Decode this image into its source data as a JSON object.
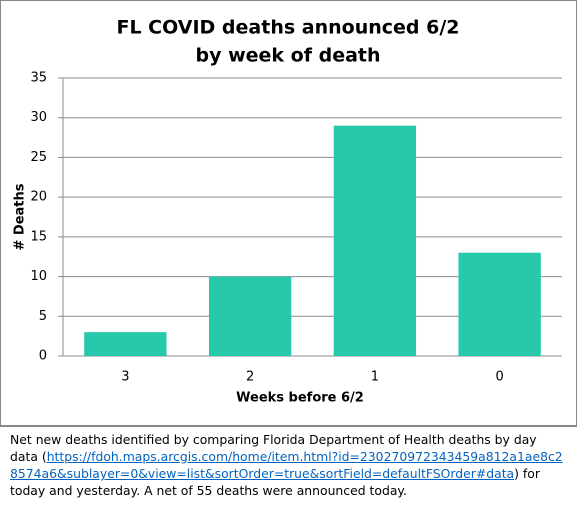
{
  "chart_data": {
    "type": "bar",
    "title": "FL COVID deaths announced 6/2",
    "subtitle": "by week of death",
    "x_label": "Weeks before 6/2",
    "y_label": "# Deaths",
    "categories": [
      "3",
      "2",
      "1",
      "0"
    ],
    "values": [
      3,
      10,
      29,
      13
    ],
    "color": "#26c9a9",
    "ylim": [
      0,
      35
    ],
    "yticks": [
      0,
      5,
      10,
      15,
      20,
      25,
      30,
      35
    ],
    "grid": true
  },
  "note": {
    "before": "Net new deaths identified by comparing Florida Department of Health deaths by day data (",
    "link": "https://fdoh.maps.arcgis.com/home/item.html?id=230270972343459a812a1ae8c28574a6&sublayer=0&view=list&sortOrder=true&sortField=defaultFSOrder#data",
    "after": ") for today and yesterday. A net of 55 deaths were announced today."
  }
}
